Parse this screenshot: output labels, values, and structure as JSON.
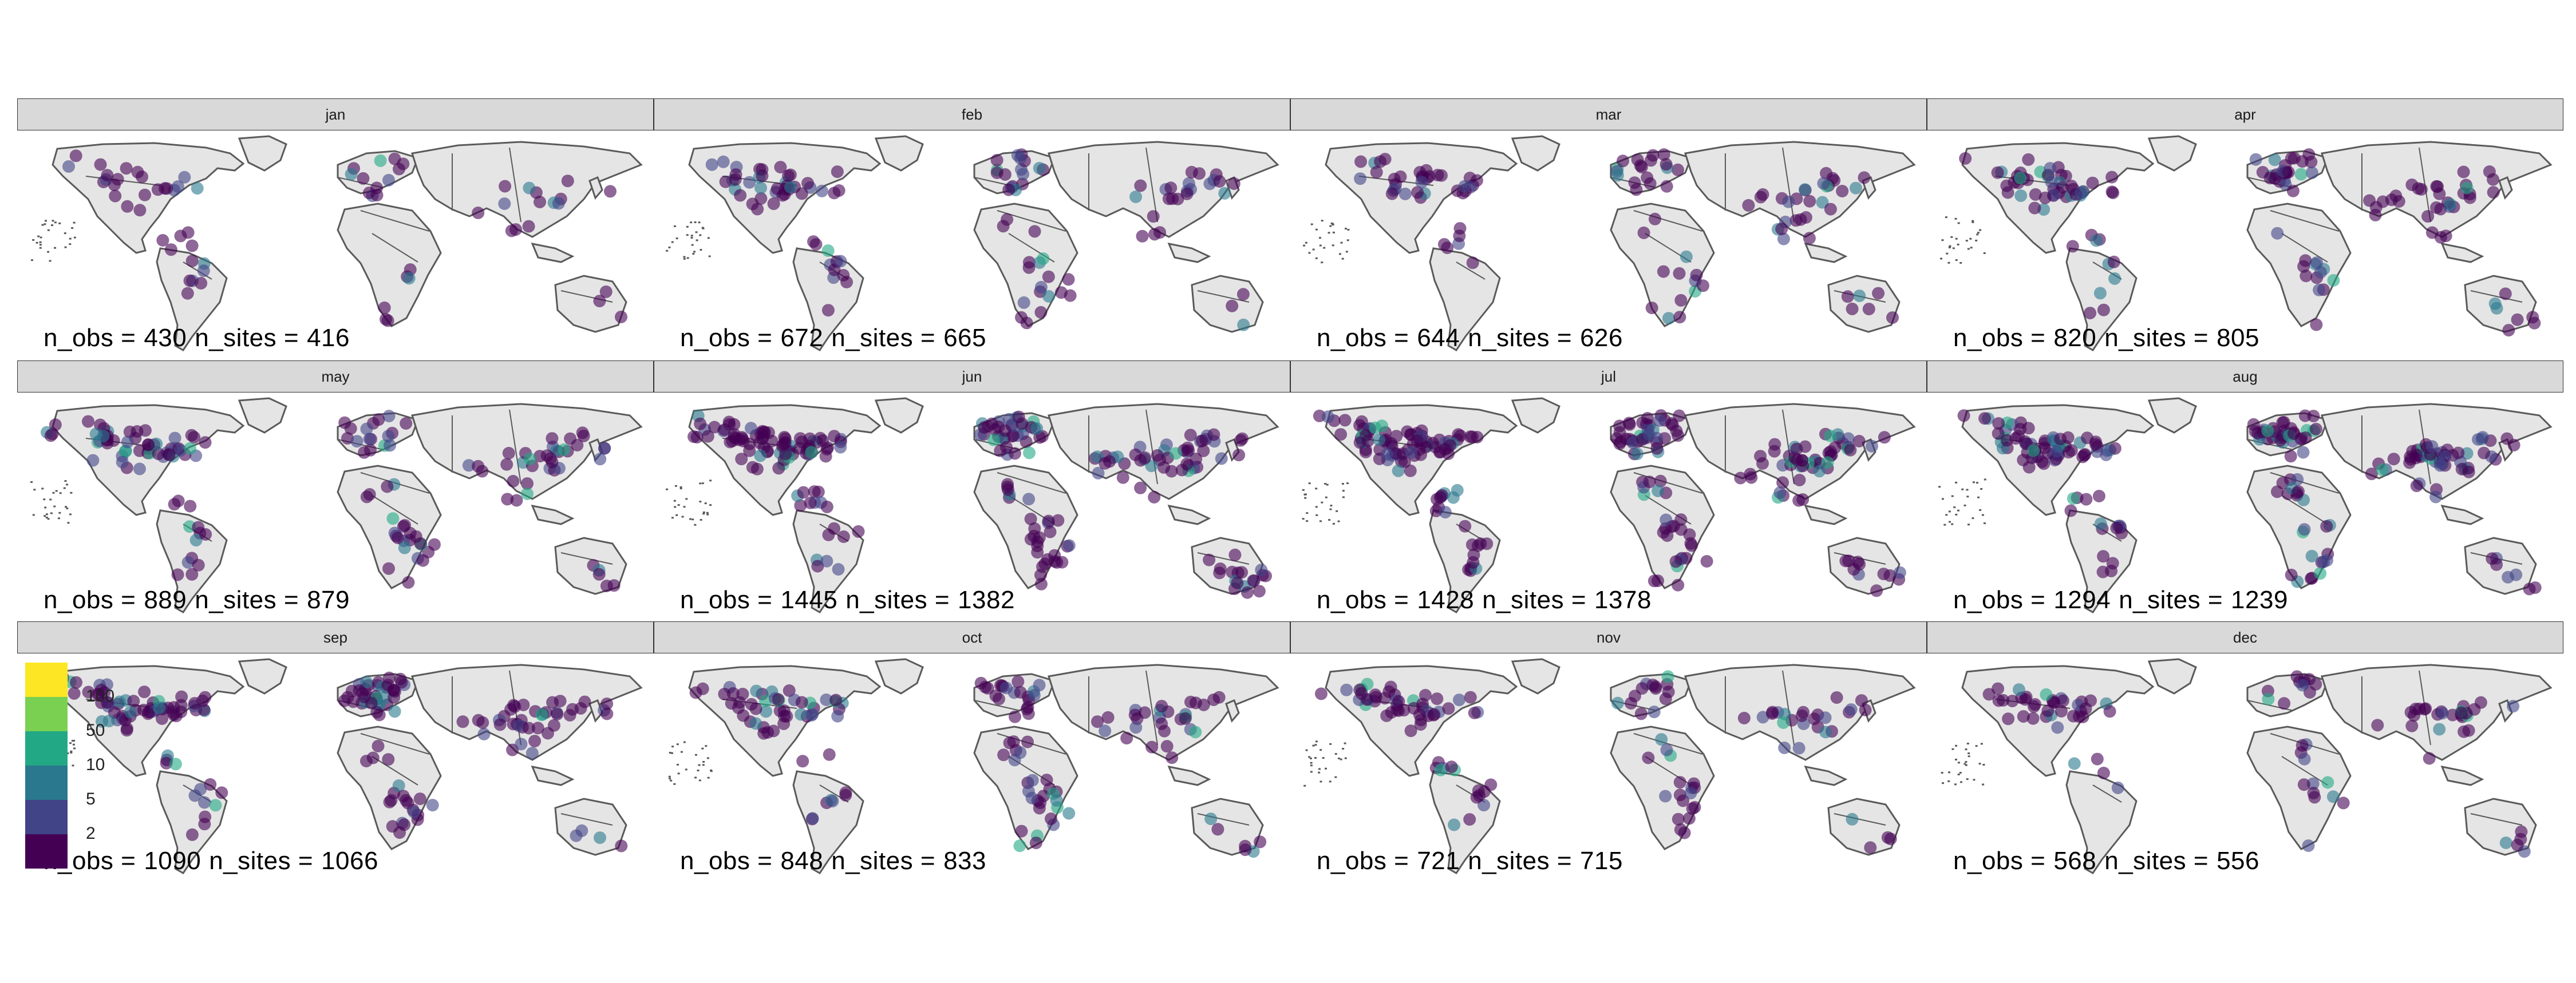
{
  "colors": {
    "land": "#e5e5e5",
    "border": "#5a5a5a",
    "strip": "#d9d9d9",
    "palette": [
      "#440154",
      "#414487",
      "#2a788e",
      "#22a884",
      "#7ad151",
      "#fde725"
    ]
  },
  "legend": {
    "breaks": [
      "2",
      "5",
      "10",
      "50",
      "100"
    ],
    "colors": [
      "#440154",
      "#414487",
      "#2a788e",
      "#22a884",
      "#7ad151",
      "#fde725"
    ]
  },
  "panels": [
    {
      "month": "jan",
      "n_obs": "430",
      "n_sites": "416",
      "obs_label": "n_obs =",
      "sites_label": "n_sites ="
    },
    {
      "month": "feb",
      "n_obs": "672",
      "n_sites": "665",
      "obs_label": "n_obs =",
      "sites_label": "n_sites ="
    },
    {
      "month": "mar",
      "n_obs": "644",
      "n_sites": "626",
      "obs_label": "n_obs =",
      "sites_label": "n_sites ="
    },
    {
      "month": "apr",
      "n_obs": "820",
      "n_sites": "805",
      "obs_label": "n_obs =",
      "sites_label": "n_sites ="
    },
    {
      "month": "may",
      "n_obs": "889",
      "n_sites": "879",
      "obs_label": "n_obs =",
      "sites_label": "n_sites ="
    },
    {
      "month": "jun",
      "n_obs": "1445",
      "n_sites": "1382",
      "obs_label": "n_obs =",
      "sites_label": "n_sites ="
    },
    {
      "month": "jul",
      "n_obs": "1428",
      "n_sites": "1378",
      "obs_label": "n_obs =",
      "sites_label": "n_sites ="
    },
    {
      "month": "aug",
      "n_obs": "1294",
      "n_sites": "1239",
      "obs_label": "n_obs =",
      "sites_label": "n_sites ="
    },
    {
      "month": "sep",
      "n_obs": "1090",
      "n_sites": "1066",
      "obs_label": "n_obs =",
      "sites_label": "n_sites ="
    },
    {
      "month": "oct",
      "n_obs": "848",
      "n_sites": "833",
      "obs_label": "n_obs =",
      "sites_label": "n_sites ="
    },
    {
      "month": "nov",
      "n_obs": "721",
      "n_sites": "715",
      "obs_label": "n_obs =",
      "sites_label": "n_sites ="
    },
    {
      "month": "dec",
      "n_obs": "568",
      "n_sites": "556",
      "obs_label": "n_obs =",
      "sites_label": "n_sites ="
    }
  ]
}
